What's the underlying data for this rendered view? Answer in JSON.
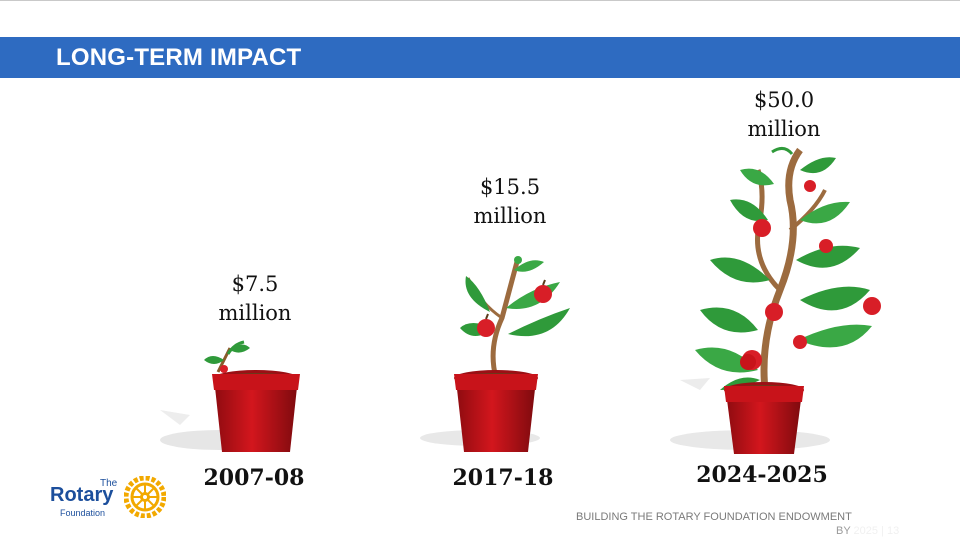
{
  "header": {
    "title": "LONG-TERM IMPACT"
  },
  "stages": [
    {
      "amount_line1": "$7.5",
      "amount_line2": "million",
      "year": "2007-08"
    },
    {
      "amount_line1": "$15.5",
      "amount_line2": "million",
      "year": "2017-18"
    },
    {
      "amount_line1": "$50.0",
      "amount_line2": "million",
      "year": "2024-2025"
    }
  ],
  "footer": {
    "text": "BUILDING THE ROTARY FOUNDATION ENDOWMENT",
    "sub": "BY 2025 | 13"
  },
  "logo": {
    "the": "The",
    "name": "Rotary",
    "sub": "Foundation"
  },
  "colors": {
    "title_bar": "#2e6bc1",
    "pot": "#c8131a",
    "leaf": "#2f9a3a",
    "apple": "#d81e27",
    "logo_blue": "#1c4f9c",
    "logo_gold": "#f2a900"
  },
  "icons": [
    "sprout-pot-icon",
    "young-tree-pot-icon",
    "apple-tree-pot-icon",
    "rotary-wheel-icon"
  ]
}
